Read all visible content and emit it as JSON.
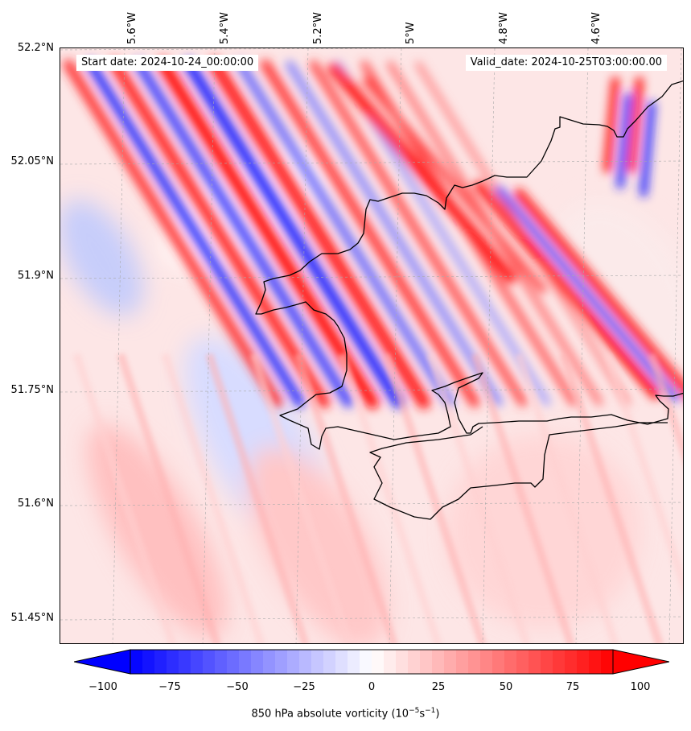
{
  "header": {
    "start_date": "Start date: 2024-10-24_00:00:00",
    "valid_date": "Valid_date: 2024-10-25T03:00:00.00"
  },
  "axes": {
    "lat_labels": [
      "52.2°N",
      "52.05°N",
      "51.9°N",
      "51.75°N",
      "51.6°N",
      "51.45°N"
    ],
    "lon_labels": [
      "5.6°W",
      "5.4°W",
      "5.2°W",
      "5°W",
      "4.8°W",
      "4.6°W"
    ]
  },
  "colorbar": {
    "ticks": [
      "−100",
      "−75",
      "−50",
      "−25",
      "0",
      "25",
      "50",
      "75",
      "100"
    ],
    "title_main": "850 hPa absolute vorticity (10",
    "title_exp1": "−5",
    "title_mid": "s",
    "title_exp2": "−1",
    "title_end": ")",
    "min_color": "#0000ff",
    "mid_color": "#ffffff",
    "max_color": "#ff0000"
  },
  "map": {
    "coastline_color": "#000000",
    "gridline_color": "#aaaaaa"
  }
}
